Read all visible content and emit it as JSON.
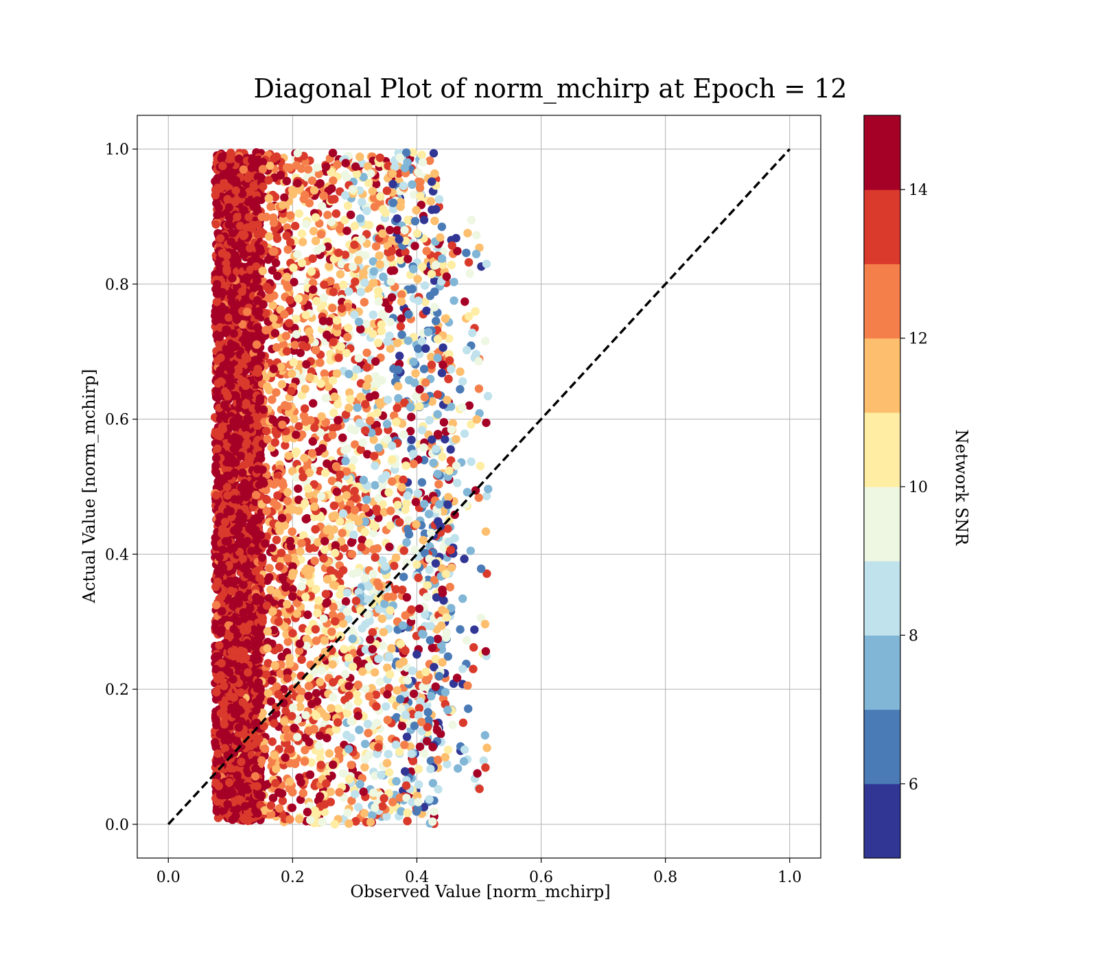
{
  "chart_data": {
    "type": "scatter",
    "title": "Diagonal Plot of norm_mchirp at Epoch = 12",
    "xlabel": "Observed Value [norm_mchirp]",
    "ylabel": "Actual Value [norm_mchirp]",
    "xlim": [
      -0.05,
      1.05
    ],
    "ylim": [
      -0.05,
      1.05
    ],
    "grid": true,
    "x_ticks": [
      "0.0",
      "0.2",
      "0.4",
      "0.6",
      "0.8",
      "1.0"
    ],
    "y_ticks": [
      "0.0",
      "0.2",
      "0.4",
      "0.6",
      "0.8",
      "1.0"
    ],
    "reference_line": {
      "style": "dashed",
      "color": "#000000",
      "from": [
        0,
        0
      ],
      "to": [
        1,
        1
      ]
    },
    "colorbar": {
      "label": "Network SNR",
      "range": [
        5,
        15
      ],
      "ticks": [
        "6",
        "8",
        "10",
        "12",
        "14"
      ],
      "tick_values": [
        6,
        8,
        10,
        12,
        14
      ],
      "bins": [
        {
          "from": 5,
          "to": 6,
          "color": "#313695"
        },
        {
          "from": 6,
          "to": 7,
          "color": "#4a7bb7"
        },
        {
          "from": 7,
          "to": 8,
          "color": "#82b6d6"
        },
        {
          "from": 8,
          "to": 9,
          "color": "#c0e2ec"
        },
        {
          "from": 9,
          "to": 10,
          "color": "#eef7e2"
        },
        {
          "from": 10,
          "to": 11,
          "color": "#feeda2"
        },
        {
          "from": 11,
          "to": 12,
          "color": "#fdbe6e"
        },
        {
          "from": 12,
          "to": 13,
          "color": "#f57f4a"
        },
        {
          "from": 13,
          "to": 14,
          "color": "#d93a2c"
        },
        {
          "from": 14,
          "to": 15,
          "color": "#a50026"
        }
      ]
    },
    "point_distribution": {
      "description_values": "dense band of points; actual value spans 0.0–1.0; observed value spans ~0.07–0.52; low observed values have high SNR",
      "snr_by_observed": [
        {
          "observed": [
            0.07,
            0.16
          ],
          "snr_range": [
            13.5,
            15
          ]
        },
        {
          "observed": [
            0.16,
            0.24
          ],
          "snr_range": [
            11,
            15
          ]
        },
        {
          "observed": [
            0.24,
            0.34
          ],
          "snr_range": [
            9,
            15
          ]
        },
        {
          "observed": [
            0.34,
            0.42
          ],
          "snr_range": [
            6.5,
            14
          ]
        },
        {
          "observed": [
            0.42,
            0.52
          ],
          "snr_range": [
            5,
            15
          ]
        }
      ]
    }
  }
}
